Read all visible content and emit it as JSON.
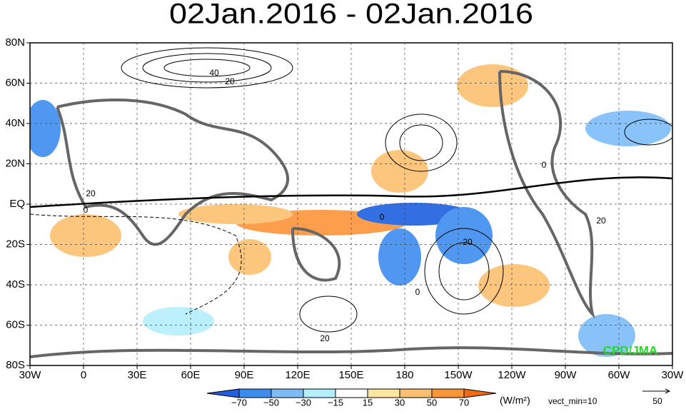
{
  "title": "02Jan.2016 - 02Jan.2016",
  "lat_labels": [
    "80N",
    "60N",
    "40N",
    "20N",
    "EQ",
    "20S",
    "40S",
    "60S",
    "80S"
  ],
  "lon_labels": [
    "30W",
    "0",
    "30E",
    "60E",
    "90E",
    "120E",
    "150E",
    "180",
    "150W",
    "120W",
    "90W",
    "60W",
    "30W"
  ],
  "contour_labels": [
    "40",
    "20",
    "0",
    "20",
    "0",
    "20",
    "0",
    "20",
    "0",
    "20"
  ],
  "colorbar": {
    "labels": [
      "−70",
      "−50",
      "−30",
      "−15",
      "15",
      "30",
      "50",
      "70"
    ],
    "colors": [
      "#1f5fe0",
      "#3c8cf0",
      "#7cbcf8",
      "#b4eefc",
      "#ffffff",
      "#fce6a0",
      "#fcc070",
      "#fc9438",
      "#f46a10"
    ]
  },
  "units": "(W/m²)",
  "vect_note": "vect_min=10",
  "vector_scale": "50",
  "credit": "CPD/JMA"
}
